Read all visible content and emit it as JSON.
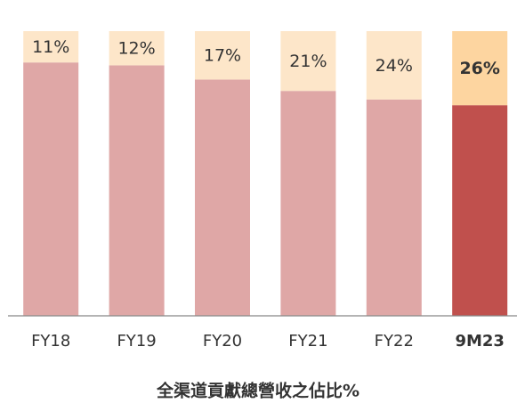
{
  "chart_data": {
    "type": "stacked_bar",
    "title": "全渠道貢獻總營收之佔比%",
    "categories": [
      "FY18",
      "FY19",
      "FY20",
      "FY21",
      "FY22",
      "9M23"
    ],
    "highlight": 5,
    "series": [
      {
        "colors": [
          "#dfa7a6",
          "#dfa7a6",
          "#dfa7a6",
          "#dfa7a6",
          "#dfa7a6",
          "#c0504d"
        ],
        "values": [
          89,
          88,
          83,
          79,
          76,
          74
        ]
      },
      {
        "colors": [
          "#fde6c9",
          "#fde6c9",
          "#fde6c9",
          "#fde6c9",
          "#fde6c9",
          "#fdd5a0"
        ],
        "values": [
          11,
          12,
          17,
          21,
          24,
          26
        ],
        "value_labels": [
          "11%",
          "12%",
          "17%",
          "21%",
          "24%",
          "26%"
        ]
      }
    ],
    "ylim": [
      0,
      100
    ]
  }
}
